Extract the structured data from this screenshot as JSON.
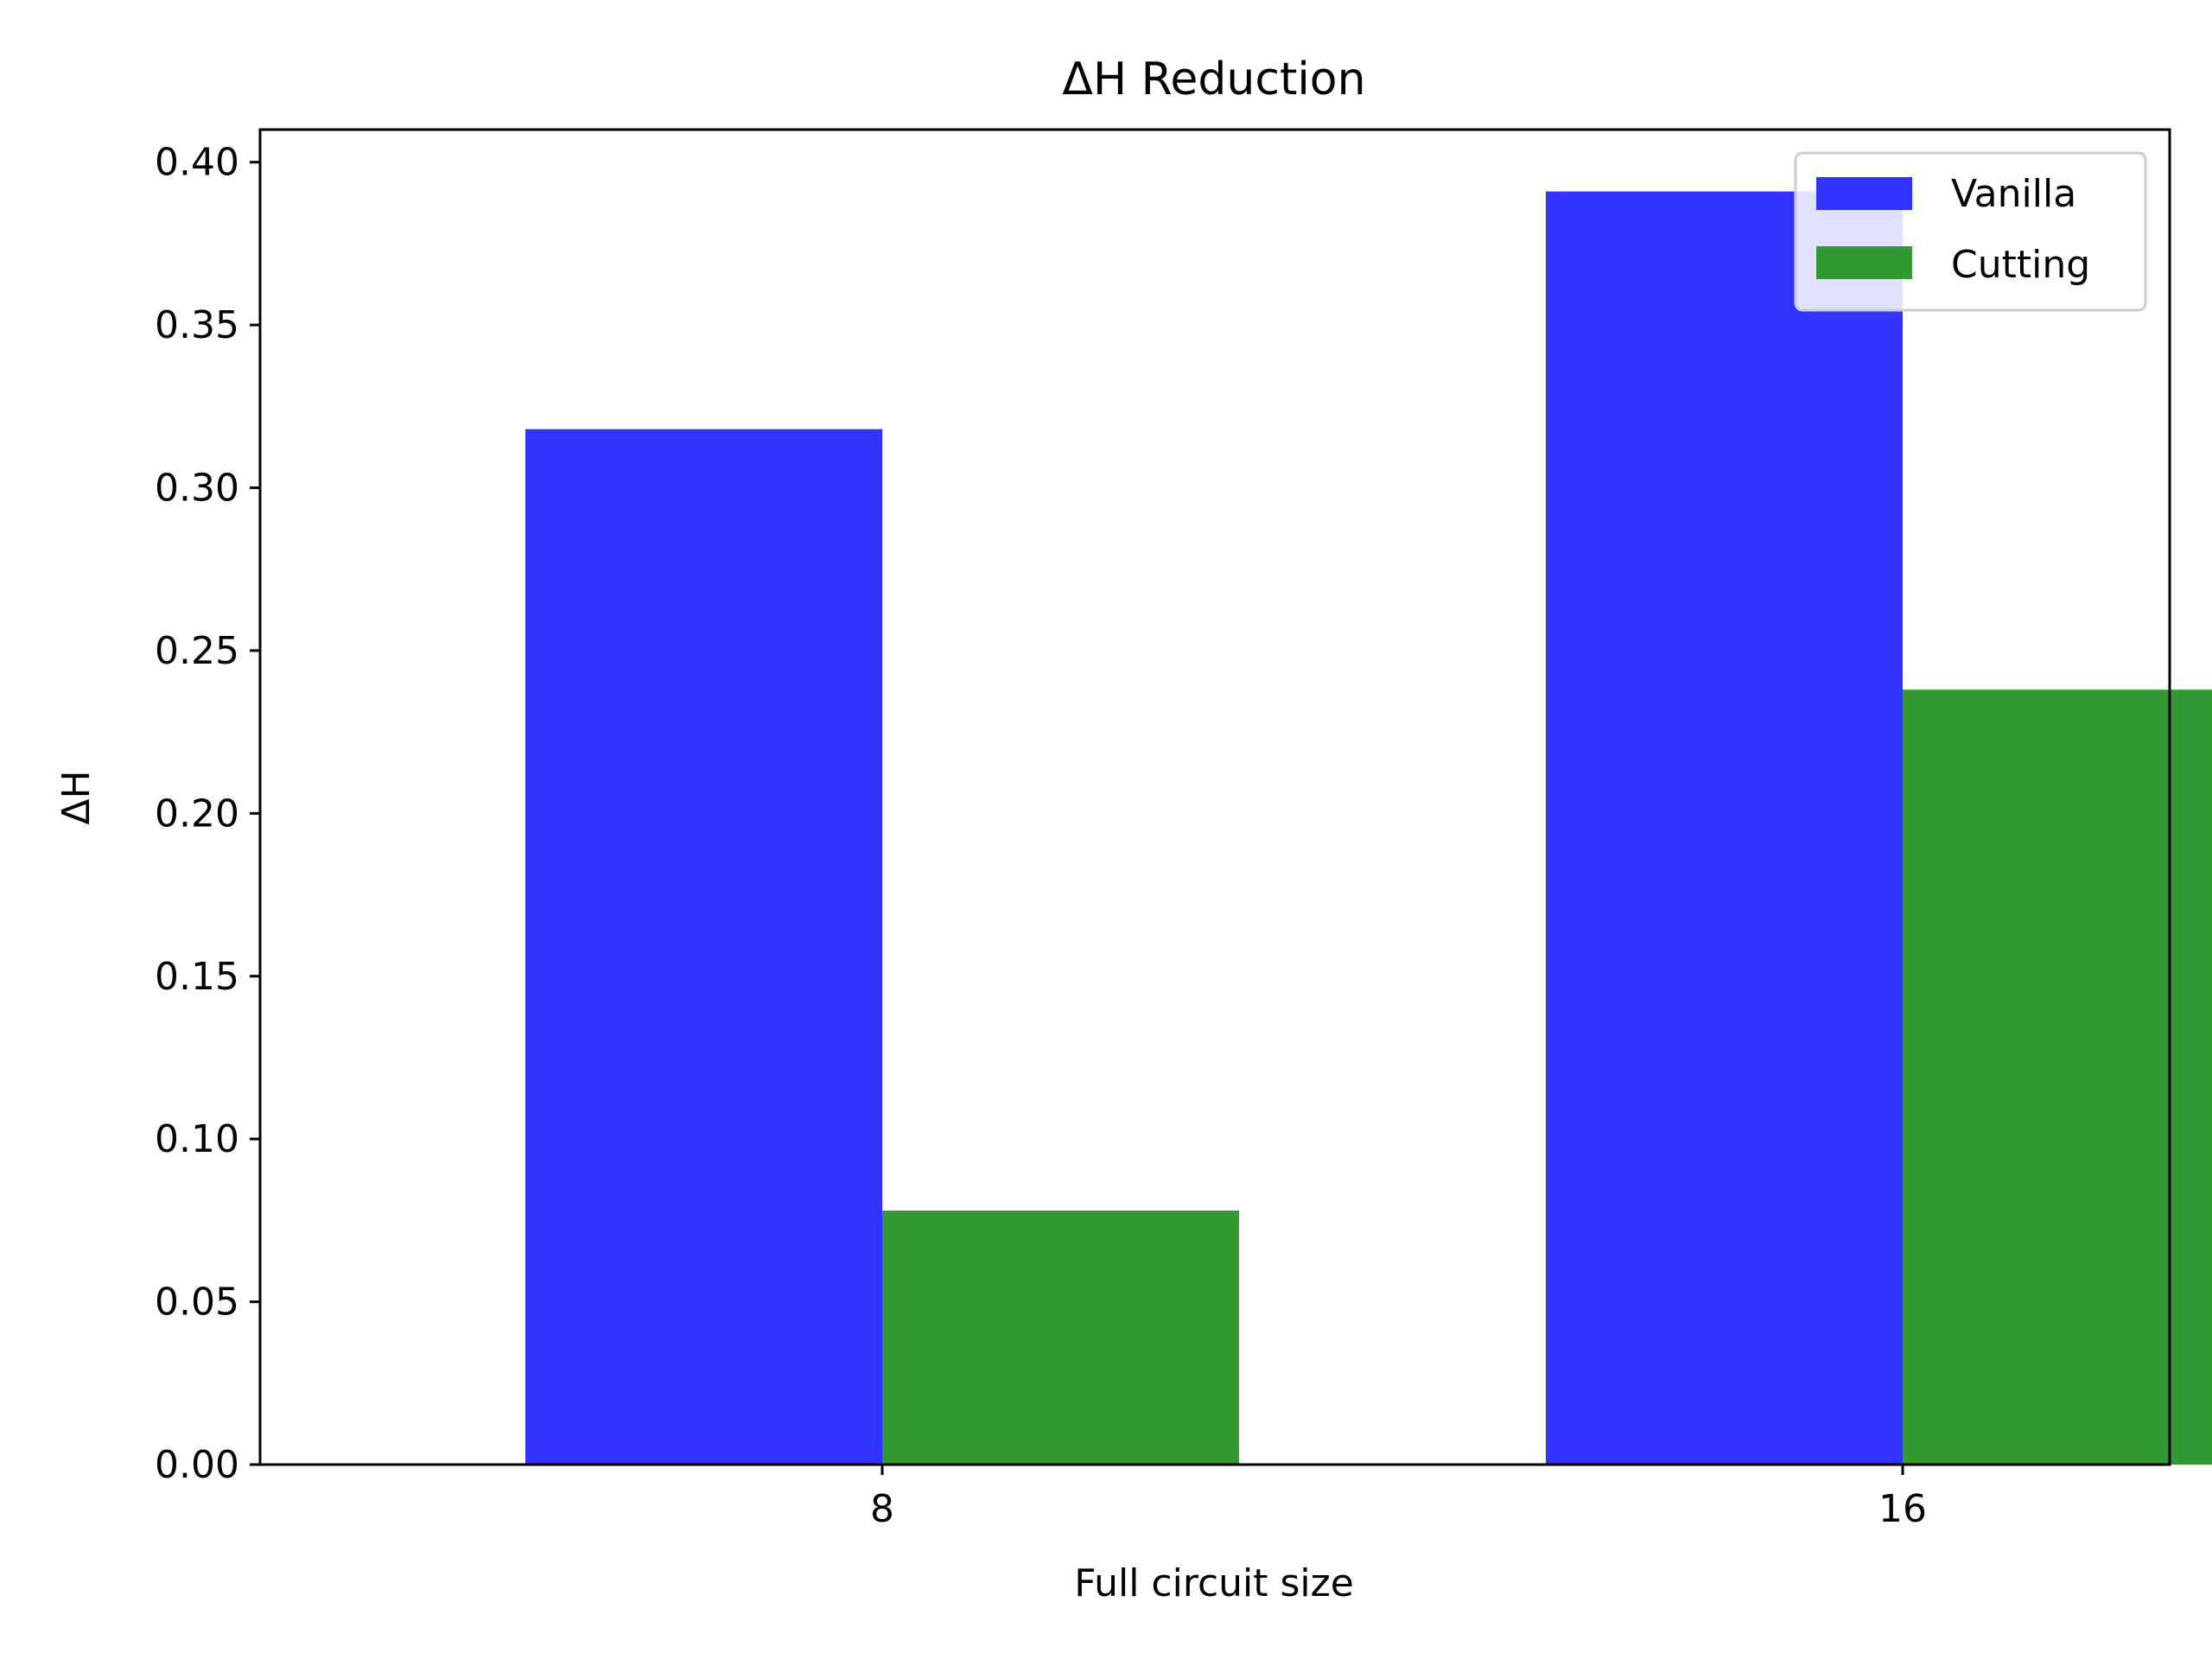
{
  "chart_data": {
    "type": "bar",
    "title": "ΔH Reduction",
    "xlabel": "Full circuit size",
    "ylabel": "ΔH",
    "categories": [
      "8",
      "16"
    ],
    "series": [
      {
        "name": "Vanilla",
        "values": [
          0.318,
          0.391
        ],
        "color": "#3333ff"
      },
      {
        "name": "Cutting",
        "values": [
          0.078,
          0.238
        ],
        "color": "#339933"
      }
    ],
    "ylim": [
      0,
      0.41
    ],
    "yticks": [
      "0.00",
      "0.05",
      "0.10",
      "0.15",
      "0.20",
      "0.25",
      "0.30",
      "0.35",
      "0.40"
    ],
    "grid": false,
    "legend_position": "top-right"
  }
}
